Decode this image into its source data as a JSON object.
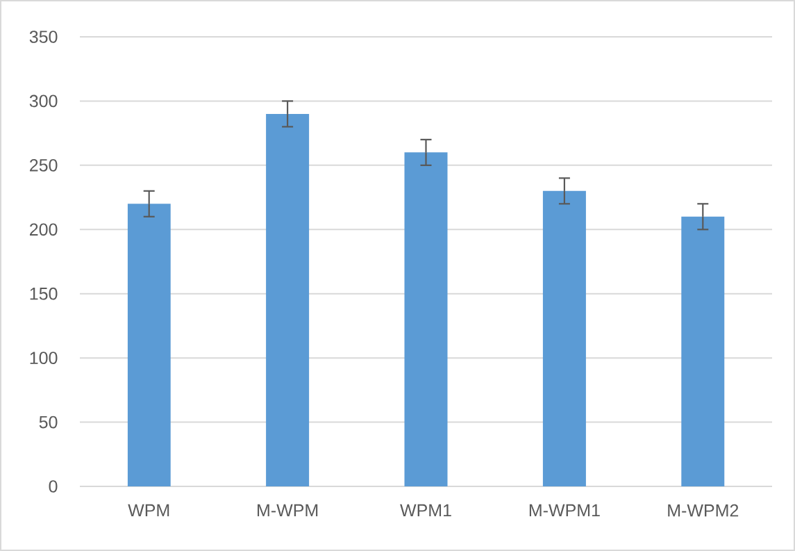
{
  "chart_data": {
    "type": "bar",
    "categories": [
      "WPM",
      "M-WPM",
      "WPM1",
      "M-WPM1",
      "M-WPM2"
    ],
    "values": [
      220,
      290,
      260,
      230,
      210
    ],
    "errors": [
      10,
      10,
      10,
      10,
      10
    ],
    "color": "#5b9bd5",
    "ylim": [
      0,
      350
    ],
    "yticks": [
      0,
      50,
      100,
      150,
      200,
      250,
      300,
      350
    ],
    "grid": "y"
  }
}
